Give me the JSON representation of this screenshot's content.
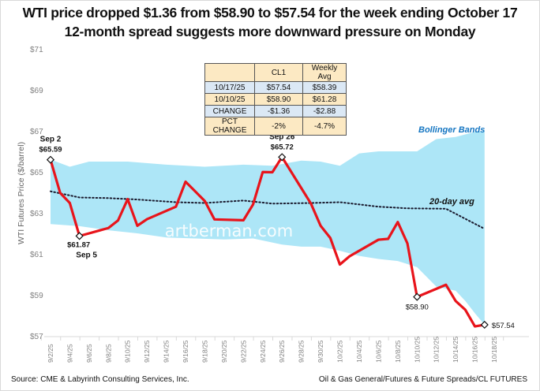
{
  "title_line1": "WTI price dropped $1.36 from $58.90  to $57.54 for the week ending October 17",
  "title_line2": "12-month spread suggests more downward pressure on Monday",
  "table": {
    "headers": [
      "",
      "CL1",
      "Weekly Avg"
    ],
    "rows": [
      [
        "10/17/25",
        "$57.54",
        "$58.39"
      ],
      [
        "10/10/25",
        "$58.90",
        "$61.28"
      ],
      [
        "CHANGE",
        "-$1.36",
        "-$2.88"
      ],
      [
        "PCT CHANGE",
        "-2%",
        "-4.7%"
      ]
    ]
  },
  "footer": {
    "source": "Source: CME & Labyrinth Consulting Services, Inc.",
    "path": "Oil & Gas General/Futures & Future Spreads/CL FUTURES"
  },
  "watermark": "artberman.com",
  "colors": {
    "price_line": "#e8141b",
    "band_fill": "#ade6f7",
    "avg_line": "#1a1a2e",
    "band_label": "#1576c2",
    "axis_text": "#808080"
  },
  "chart_data": {
    "type": "line",
    "title": "WTI price dropped $1.36 from $58.90 to $57.54 for the week ending October 17",
    "ylabel": "WTI  Futures Price ($/barrel)",
    "xlabel": "",
    "ylim": [
      57,
      71
    ],
    "yticks": [
      57,
      59,
      61,
      63,
      65,
      67,
      69,
      71
    ],
    "ytick_labels": [
      "$57",
      "$59",
      "$61",
      "$63",
      "$65",
      "$67",
      "$69",
      "$71"
    ],
    "xlim": [
      "9/2/25",
      "10/18/25"
    ],
    "xtick_labels": [
      "9/2/25",
      "9/4/25",
      "9/6/25",
      "9/8/25",
      "9/10/25",
      "9/12/25",
      "9/14/25",
      "9/16/25",
      "9/18/25",
      "9/20/25",
      "9/22/25",
      "9/24/25",
      "9/26/25",
      "9/28/25",
      "9/30/25",
      "10/2/25",
      "10/4/25",
      "10/6/25",
      "10/8/25",
      "10/10/25",
      "10/12/25",
      "10/14/25",
      "10/16/25",
      "10/18/25"
    ],
    "grid": false,
    "series": [
      {
        "name": "WTI CL1",
        "day_offsets": [
          0,
          1,
          2,
          3,
          6,
          7,
          8,
          9,
          10,
          13,
          14,
          15,
          16,
          17,
          20,
          21,
          22,
          23,
          24,
          27,
          28,
          29,
          30,
          31,
          34,
          35,
          36,
          37,
          38,
          41,
          42,
          43,
          44,
          45
        ],
        "values": [
          65.59,
          63.97,
          63.48,
          61.87,
          62.26,
          62.63,
          63.67,
          62.37,
          62.69,
          63.3,
          64.52,
          64.05,
          63.57,
          62.68,
          62.64,
          63.41,
          64.99,
          64.98,
          65.72,
          63.45,
          62.37,
          61.78,
          60.48,
          60.88,
          61.69,
          61.73,
          62.55,
          61.51,
          58.9,
          59.49,
          58.7,
          58.27,
          57.46,
          57.54
        ]
      },
      {
        "name": "20-day avg",
        "day_offsets": [
          0,
          3,
          6,
          9,
          13,
          16,
          20,
          23,
          27,
          30,
          34,
          37,
          41,
          45
        ],
        "values": [
          64.05,
          63.75,
          63.72,
          63.65,
          63.52,
          63.48,
          63.6,
          63.45,
          63.48,
          63.52,
          63.3,
          63.22,
          63.2,
          62.22
        ]
      },
      {
        "name": "Bollinger upper",
        "day_offsets": [
          0,
          2,
          4,
          8,
          12,
          16,
          20,
          23,
          26,
          28,
          30,
          32,
          34,
          36,
          38,
          40,
          42,
          44,
          45
        ],
        "values": [
          65.6,
          65.25,
          65.5,
          65.5,
          65.35,
          65.25,
          65.35,
          65.3,
          65.55,
          65.5,
          65.3,
          65.9,
          66.0,
          66.0,
          66.0,
          66.6,
          66.7,
          66.95,
          67.0
        ]
      },
      {
        "name": "Bollinger lower",
        "day_offsets": [
          0,
          3,
          6,
          9,
          12,
          15,
          18,
          21,
          24,
          26,
          28,
          30,
          32,
          34,
          36,
          38,
          40,
          42,
          43,
          44,
          45
        ],
        "values": [
          62.45,
          62.35,
          62.15,
          62.0,
          61.8,
          61.75,
          61.7,
          61.75,
          61.45,
          61.35,
          61.35,
          61.15,
          60.9,
          60.75,
          60.65,
          60.35,
          59.4,
          59.2,
          58.7,
          58.1,
          57.54
        ]
      }
    ],
    "annotations": [
      {
        "text": "Sep 2",
        "value_text": "$65.59",
        "day_offset": 0,
        "value": 65.59
      },
      {
        "text": "Sep 5",
        "value_text": "$61.87",
        "day_offset": 3,
        "value": 61.87
      },
      {
        "text": "Sep 26",
        "value_text": "$65.72",
        "day_offset": 24,
        "value": 65.72
      },
      {
        "text": "",
        "value_text": "$58.90",
        "day_offset": 38,
        "value": 58.9
      },
      {
        "text": "",
        "value_text": "$57.54",
        "day_offset": 45,
        "value": 57.54
      }
    ],
    "labels": {
      "bollinger": "Bollinger Bands",
      "avg": "20-day avg"
    }
  }
}
